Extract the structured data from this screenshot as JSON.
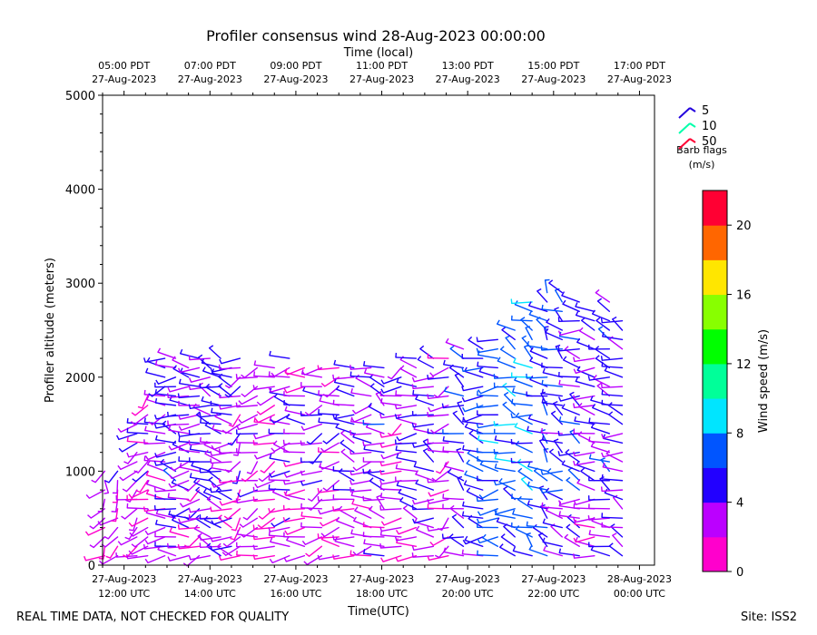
{
  "chart_data": {
    "type": "wind-barb-profile",
    "title": "Profiler consensus wind 28-Aug-2023 00:00:00",
    "xlabel": "Time(UTC)",
    "xlabel_top": "Time (local)",
    "ylabel": "Profiler altitude (meters)",
    "ylim": [
      0,
      5000
    ],
    "yticks": [
      0,
      1000,
      2000,
      3000,
      4000,
      5000
    ],
    "x_utc_hours_range": [
      11.5,
      24.35
    ],
    "bottom_ticks": [
      {
        "hour": 12,
        "line1": "27-Aug-2023",
        "line2": "12:00 UTC"
      },
      {
        "hour": 14,
        "line1": "27-Aug-2023",
        "line2": "14:00 UTC"
      },
      {
        "hour": 16,
        "line1": "27-Aug-2023",
        "line2": "16:00 UTC"
      },
      {
        "hour": 18,
        "line1": "27-Aug-2023",
        "line2": "18:00 UTC"
      },
      {
        "hour": 20,
        "line1": "27-Aug-2023",
        "line2": "20:00 UTC"
      },
      {
        "hour": 22,
        "line1": "27-Aug-2023",
        "line2": "22:00 UTC"
      },
      {
        "hour": 24,
        "line1": "28-Aug-2023",
        "line2": "00:00 UTC"
      }
    ],
    "top_ticks": [
      {
        "hour": 12,
        "line1": "05:00 PDT",
        "line2": "27-Aug-2023"
      },
      {
        "hour": 14,
        "line1": "07:00 PDT",
        "line2": "27-Aug-2023"
      },
      {
        "hour": 16,
        "line1": "09:00 PDT",
        "line2": "27-Aug-2023"
      },
      {
        "hour": 18,
        "line1": "11:00 PDT",
        "line2": "27-Aug-2023"
      },
      {
        "hour": 20,
        "line1": "13:00 PDT",
        "line2": "27-Aug-2023"
      },
      {
        "hour": 22,
        "line1": "15:00 PDT",
        "line2": "27-Aug-2023"
      },
      {
        "hour": 24,
        "line1": "17:00 PDT",
        "line2": "27-Aug-2023"
      }
    ],
    "colorbar": {
      "label": "Wind speed (m/s)",
      "range": [
        0,
        22
      ],
      "ticks": [
        0,
        4,
        8,
        12,
        16,
        20
      ],
      "bins": [
        "#ff00cc",
        "#bb00ff",
        "#2200ff",
        "#0055ff",
        "#00e5ff",
        "#00ff99",
        "#00ff00",
        "#88ff00",
        "#ffe600",
        "#ff6600",
        "#ff0033"
      ]
    },
    "legend": {
      "items": [
        {
          "label": "5",
          "color": "#2200dd"
        },
        {
          "label": "10",
          "color": "#00ffaa"
        },
        {
          "label": "50",
          "color": "#ff0033"
        }
      ],
      "caption1": "Barb flags",
      "caption2": "(m/s)"
    },
    "profiles": [
      {
        "t": 11.55,
        "top": 1000,
        "speed": 2.5,
        "dir": 210
      },
      {
        "t": 11.85,
        "top": 1000,
        "speed": 3.0,
        "dir": 200
      },
      {
        "t": 12.3,
        "top": 1500,
        "speed": 3.5,
        "dir": 230
      },
      {
        "t": 12.55,
        "top": 1850,
        "speed": 3.0,
        "dir": 240
      },
      {
        "t": 12.95,
        "top": 2200,
        "speed": 3.5,
        "dir": 260
      },
      {
        "t": 13.2,
        "top": 2200,
        "speed": 4.5,
        "dir": 280
      },
      {
        "t": 13.5,
        "top": 2150,
        "speed": 4.0,
        "dir": 270
      },
      {
        "t": 13.75,
        "top": 2200,
        "speed": 3.5,
        "dir": 250
      },
      {
        "t": 14.0,
        "top": 2200,
        "speed": 4.0,
        "dir": 290
      },
      {
        "t": 14.25,
        "top": 2200,
        "speed": 4.5,
        "dir": 300
      },
      {
        "t": 14.5,
        "top": 2150,
        "speed": 4.0,
        "dir": 280
      },
      {
        "t": 14.7,
        "top": 2200,
        "speed": 3.0,
        "dir": 230
      },
      {
        "t": 15.1,
        "top": 2150,
        "speed": 3.0,
        "dir": 240
      },
      {
        "t": 15.5,
        "top": 2150,
        "speed": 2.5,
        "dir": 250
      },
      {
        "t": 15.85,
        "top": 2250,
        "speed": 3.5,
        "dir": 270
      },
      {
        "t": 16.2,
        "top": 2100,
        "speed": 3.0,
        "dir": 260
      },
      {
        "t": 16.6,
        "top": 2100,
        "speed": 3.5,
        "dir": 250
      },
      {
        "t": 17.0,
        "top": 2100,
        "speed": 3.0,
        "dir": 260
      },
      {
        "t": 17.35,
        "top": 2150,
        "speed": 4.0,
        "dir": 280
      },
      {
        "t": 17.75,
        "top": 2150,
        "speed": 3.5,
        "dir": 270
      },
      {
        "t": 18.05,
        "top": 2100,
        "speed": 4.5,
        "dir": 300
      },
      {
        "t": 18.45,
        "top": 2100,
        "speed": 3.0,
        "dir": 250
      },
      {
        "t": 18.8,
        "top": 2200,
        "speed": 4.0,
        "dir": 280
      },
      {
        "t": 19.2,
        "top": 2250,
        "speed": 4.5,
        "dir": 290
      },
      {
        "t": 19.55,
        "top": 2200,
        "speed": 3.0,
        "dir": 240
      },
      {
        "t": 19.9,
        "top": 2300,
        "speed": 5.0,
        "dir": 300
      },
      {
        "t": 20.35,
        "top": 2350,
        "speed": 5.5,
        "dir": 280
      },
      {
        "t": 20.7,
        "top": 2450,
        "speed": 6.5,
        "dir": 270
      },
      {
        "t": 21.1,
        "top": 2500,
        "speed": 7.0,
        "dir": 290
      },
      {
        "t": 21.5,
        "top": 2800,
        "speed": 7.5,
        "dir": 300
      },
      {
        "t": 21.85,
        "top": 2900,
        "speed": 6.0,
        "dir": 310
      },
      {
        "t": 22.2,
        "top": 2900,
        "speed": 5.5,
        "dir": 300
      },
      {
        "t": 22.6,
        "top": 2850,
        "speed": 5.0,
        "dir": 290
      },
      {
        "t": 22.95,
        "top": 2700,
        "speed": 4.0,
        "dir": 280
      },
      {
        "t": 23.3,
        "top": 2800,
        "speed": 5.0,
        "dir": 300
      },
      {
        "t": 23.6,
        "top": 2600,
        "speed": 4.5,
        "dir": 290
      }
    ]
  },
  "footer": {
    "left": "REAL TIME DATA, NOT CHECKED FOR QUALITY",
    "right": "Site: ISS2"
  }
}
